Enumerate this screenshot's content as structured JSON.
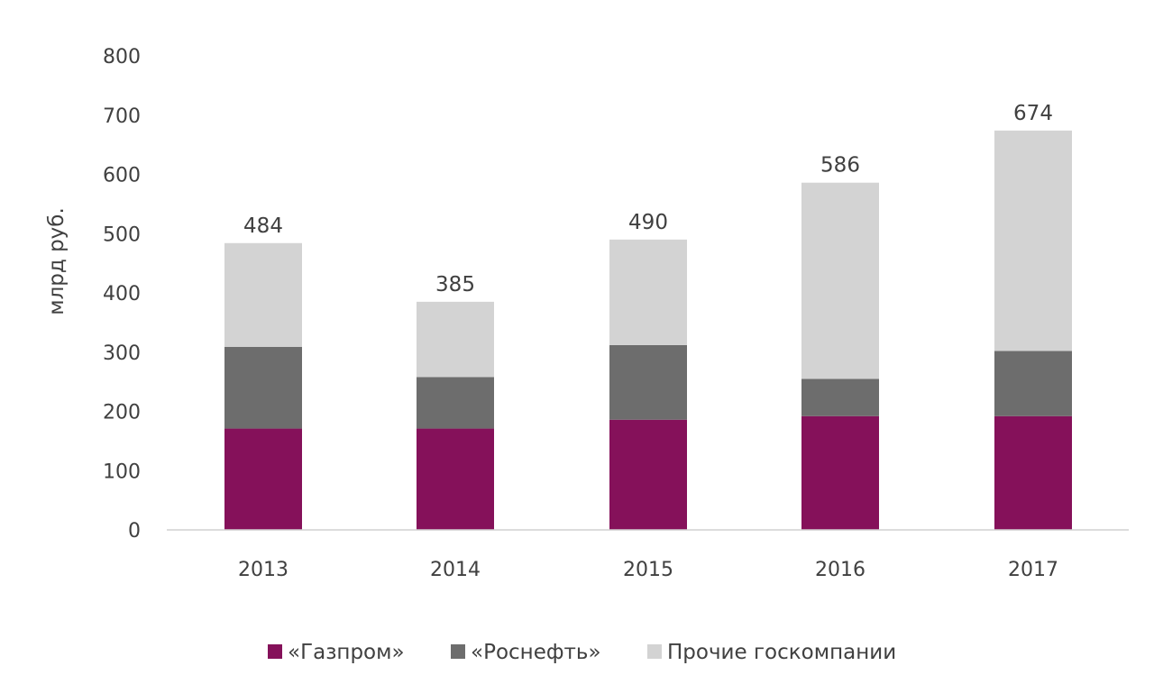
{
  "chart_data": {
    "type": "bar",
    "stacked": true,
    "ylabel": "млрд руб.",
    "ylim": [
      0,
      800
    ],
    "yticks": [
      0,
      100,
      200,
      300,
      400,
      500,
      600,
      700,
      800
    ],
    "categories": [
      "2013",
      "2014",
      "2015",
      "2016",
      "2017"
    ],
    "series": [
      {
        "name": "«Газпром»",
        "color": "#85115a",
        "values": [
          171,
          171,
          186,
          192,
          192
        ]
      },
      {
        "name": "«Роснефть»",
        "color": "#6d6d6d",
        "values": [
          138,
          87,
          126,
          63,
          110
        ]
      },
      {
        "name": "Прочие госкомпании",
        "color": "#d3d3d3",
        "values": [
          175,
          127,
          178,
          331,
          372
        ]
      }
    ],
    "totals": [
      "484",
      "385",
      "490",
      "586",
      "674"
    ],
    "grid": false,
    "legend_position": "bottom"
  }
}
